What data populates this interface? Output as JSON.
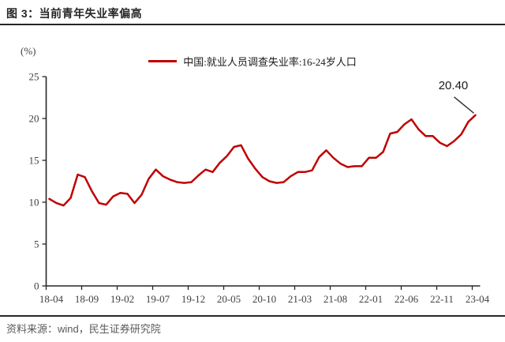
{
  "header": {
    "title": "图 3：当前青年失业率偏高"
  },
  "footer": {
    "source": "资料来源：wind，民生证券研究院"
  },
  "chart_data": {
    "type": "line",
    "title": "图 3：当前青年失业率偏高",
    "unit_label": "(%)",
    "legend_position": "top-center",
    "grid": false,
    "legend": [
      {
        "name": "中国:就业人员调查失业率:16-24岁人口",
        "color": "#c00000"
      }
    ],
    "x": [
      "18-04",
      "18-05",
      "18-06",
      "18-07",
      "18-08",
      "18-09",
      "18-10",
      "18-11",
      "18-12",
      "19-01",
      "19-02",
      "19-03",
      "19-04",
      "19-05",
      "19-06",
      "19-07",
      "19-08",
      "19-09",
      "19-10",
      "19-11",
      "19-12",
      "20-01",
      "20-02",
      "20-03",
      "20-04",
      "20-05",
      "20-06",
      "20-07",
      "20-08",
      "20-09",
      "20-10",
      "20-11",
      "20-12",
      "21-01",
      "21-02",
      "21-03",
      "21-04",
      "21-05",
      "21-06",
      "21-07",
      "21-08",
      "21-09",
      "21-10",
      "21-11",
      "21-12",
      "22-01",
      "22-02",
      "22-03",
      "22-04",
      "22-05",
      "22-06",
      "22-07",
      "22-08",
      "22-09",
      "22-10",
      "22-11",
      "22-12",
      "23-01",
      "23-02",
      "23-03",
      "23-04"
    ],
    "series": [
      {
        "name": "中国:就业人员调查失业率:16-24岁人口",
        "values": [
          10.4,
          9.9,
          9.6,
          10.5,
          13.3,
          13.0,
          11.3,
          9.9,
          9.7,
          10.7,
          11.1,
          11.0,
          9.9,
          10.9,
          12.8,
          13.9,
          13.1,
          12.7,
          12.4,
          12.3,
          12.4,
          13.2,
          13.9,
          13.6,
          14.7,
          15.5,
          16.6,
          16.8,
          15.2,
          14.0,
          13.0,
          12.5,
          12.3,
          12.4,
          13.1,
          13.6,
          13.6,
          13.8,
          15.4,
          16.2,
          15.3,
          14.6,
          14.2,
          14.3,
          14.3,
          15.3,
          15.3,
          16.0,
          18.2,
          18.4,
          19.3,
          19.9,
          18.7,
          17.9,
          17.9,
          17.1,
          16.7,
          17.3,
          18.1,
          19.6,
          20.4
        ]
      }
    ],
    "x_tick_labels": [
      "18-04",
      "18-09",
      "19-02",
      "19-07",
      "19-12",
      "20-05",
      "20-10",
      "21-03",
      "21-08",
      "22-01",
      "22-06",
      "22-11",
      "23-04"
    ],
    "y_ticks": [
      0,
      5,
      10,
      15,
      20,
      25
    ],
    "ylim": [
      0,
      25
    ],
    "xlabel": "",
    "ylabel": "(%)",
    "annotation": {
      "label": "20.40",
      "x": "23-04",
      "y": 20.4
    },
    "colors": {
      "line": "#c00000",
      "axis": "#262626",
      "tick_text": "#404040",
      "annotation_text": "#1a1a1a"
    }
  }
}
